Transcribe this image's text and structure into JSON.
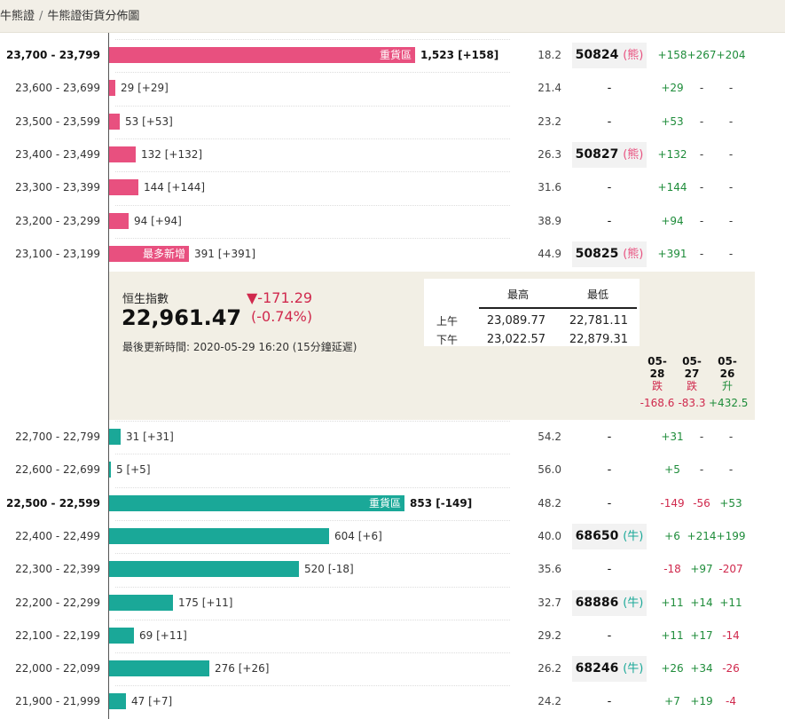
{
  "breadcrumb": {
    "parent": "牛熊證",
    "separator": "/",
    "current": "牛熊證街貨分佈圖"
  },
  "bear_rows": [
    {
      "range": "23,700 - 23,799",
      "bold": true,
      "pct": 0.985,
      "bar_label": "重貨區",
      "value": "1,523 [+158]",
      "ratio": "18.2",
      "code": "50824",
      "tag": "(熊)",
      "c1": "+158",
      "c2": "+267",
      "c3": "+204"
    },
    {
      "range": "23,600 - 23,699",
      "bold": false,
      "pct": 0.019,
      "bar_label": "",
      "value": "29 [+29]",
      "ratio": "21.4",
      "code": "-",
      "tag": "",
      "c1": "+29",
      "c2": "-",
      "c3": "-"
    },
    {
      "range": "23,500 - 23,599",
      "bold": false,
      "pct": 0.035,
      "bar_label": "",
      "value": "53 [+53]",
      "ratio": "23.2",
      "code": "-",
      "tag": "",
      "c1": "+53",
      "c2": "-",
      "c3": "-"
    },
    {
      "range": "23,400 - 23,499",
      "bold": false,
      "pct": 0.087,
      "bar_label": "",
      "value": "132 [+132]",
      "ratio": "26.3",
      "code": "50827",
      "tag": "(熊)",
      "c1": "+132",
      "c2": "-",
      "c3": "-"
    },
    {
      "range": "23,300 - 23,399",
      "bold": false,
      "pct": 0.095,
      "bar_label": "",
      "value": "144 [+144]",
      "ratio": "31.6",
      "code": "-",
      "tag": "",
      "c1": "+144",
      "c2": "-",
      "c3": "-"
    },
    {
      "range": "23,200 - 23,299",
      "bold": false,
      "pct": 0.062,
      "bar_label": "",
      "value": "94 [+94]",
      "ratio": "38.9",
      "code": "-",
      "tag": "",
      "c1": "+94",
      "c2": "-",
      "c3": "-"
    },
    {
      "range": "23,100 - 23,199",
      "bold": false,
      "pct": 0.257,
      "bar_label": "最多新增",
      "value": "391 [+391]",
      "ratio": "44.9",
      "code": "50825",
      "tag": "(熊)",
      "c1": "+391",
      "c2": "-",
      "c3": "-"
    }
  ],
  "index_panel": {
    "name": "恒生指數",
    "value": "22,961.47",
    "change": "▼-171.29",
    "change_pct": "(-0.74%)",
    "updated": "最後更新時間: 2020-05-29 16:20 (15分鐘延遲)",
    "hilo_header_high": "最高",
    "hilo_header_low": "最低",
    "am_label": "上午",
    "am_high": "23,089.77",
    "am_low": "22,781.11",
    "pm_label": "下午",
    "pm_high": "23,022.57",
    "pm_low": "22,879.31",
    "days": [
      {
        "date": "05-28",
        "dir": "跌",
        "val": "-168.6"
      },
      {
        "date": "05-27",
        "dir": "跌",
        "val": "-83.3"
      },
      {
        "date": "05-26",
        "dir": "升",
        "val": "+432.5"
      }
    ]
  },
  "bull_rows": [
    {
      "range": "22,700 - 22,799",
      "bold": false,
      "pct": 0.036,
      "bar_label": "",
      "value": "31 [+31]",
      "ratio": "54.2",
      "code": "-",
      "tag": "",
      "c1": "+31",
      "c2": "-",
      "c3": "-"
    },
    {
      "range": "22,600 - 22,699",
      "bold": false,
      "pct": 0.006,
      "bar_label": "",
      "value": "5 [+5]",
      "ratio": "56.0",
      "code": "-",
      "tag": "",
      "c1": "+5",
      "c2": "-",
      "c3": "-"
    },
    {
      "range": "22,500 - 22,599",
      "bold": true,
      "pct": 0.95,
      "bar_label": "重貨區",
      "value": "853 [-149]",
      "ratio": "48.2",
      "code": "-",
      "tag": "",
      "c1": "-149",
      "c2": "-56",
      "c3": "+53"
    },
    {
      "range": "22,400 - 22,499",
      "bold": false,
      "pct": 0.708,
      "bar_label": "",
      "value": "604 [+6]",
      "ratio": "40.0",
      "code": "68650",
      "tag": "(牛)",
      "c1": "+6",
      "c2": "+214",
      "c3": "+199"
    },
    {
      "range": "22,300 - 22,399",
      "bold": false,
      "pct": 0.61,
      "bar_label": "",
      "value": "520 [-18]",
      "ratio": "35.6",
      "code": "-",
      "tag": "",
      "c1": "-18",
      "c2": "+97",
      "c3": "-207"
    },
    {
      "range": "22,200 - 22,299",
      "bold": false,
      "pct": 0.205,
      "bar_label": "",
      "value": "175 [+11]",
      "ratio": "32.7",
      "code": "68886",
      "tag": "(牛)",
      "c1": "+11",
      "c2": "+14",
      "c3": "+11"
    },
    {
      "range": "22,100 - 22,199",
      "bold": false,
      "pct": 0.081,
      "bar_label": "",
      "value": "69 [+11]",
      "ratio": "29.2",
      "code": "-",
      "tag": "",
      "c1": "+11",
      "c2": "+17",
      "c3": "-14"
    },
    {
      "range": "22,000 - 22,099",
      "bold": false,
      "pct": 0.324,
      "bar_label": "",
      "value": "276 [+26]",
      "ratio": "26.2",
      "code": "68246",
      "tag": "(牛)",
      "c1": "+26",
      "c2": "+34",
      "c3": "-26"
    },
    {
      "range": "21,900 - 21,999",
      "bold": false,
      "pct": 0.055,
      "bar_label": "",
      "value": "47 [+7]",
      "ratio": "24.2",
      "code": "-",
      "tag": "",
      "c1": "+7",
      "c2": "+19",
      "c3": "-4"
    }
  ]
}
